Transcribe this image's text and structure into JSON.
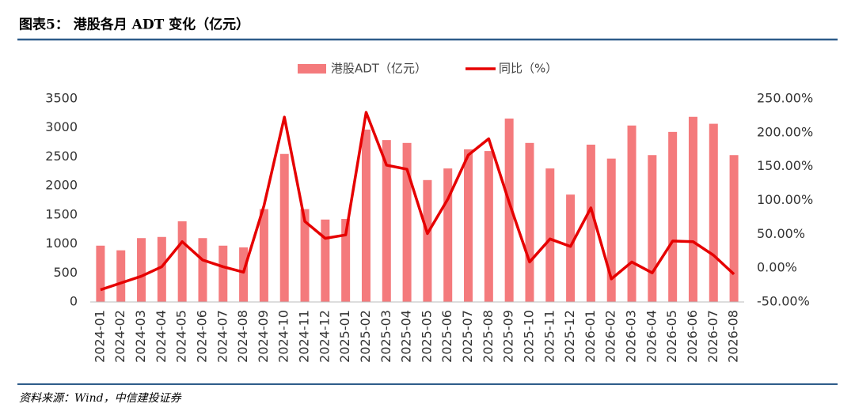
{
  "chart_data": {
    "type": "bar_line",
    "title": "图表5：  港股各月 ADT 变化（亿元）",
    "source": "资料来源：Wind，中信建投证券",
    "categories": [
      "2024-01",
      "2024-02",
      "2024-03",
      "2024-04",
      "2024-05",
      "2024-06",
      "2024-07",
      "2024-08",
      "2024-09",
      "2024-10",
      "2024-11",
      "2024-12",
      "2025-01",
      "2025-02",
      "2025-03",
      "2025-04",
      "2025-05",
      "2025-06",
      "2025-07",
      "2025-08",
      "2025-09",
      "2025-10",
      "2025-11",
      "2025-12",
      "2026-01",
      "2026-02",
      "2026-03",
      "2026-04",
      "2026-05",
      "2026-06",
      "2026-07",
      "2026-08"
    ],
    "series": [
      {
        "name": "港股ADT（亿元）",
        "type": "bar",
        "color": "#f47a7c",
        "values": [
          970,
          890,
          1100,
          1120,
          1390,
          1100,
          970,
          940,
          1600,
          2550,
          1600,
          1420,
          1430,
          2970,
          2790,
          2740,
          2100,
          2300,
          2630,
          2600,
          3160,
          2740,
          2300,
          1850,
          2710,
          2470,
          3040,
          2530,
          2930,
          3190,
          3070,
          2530
        ]
      },
      {
        "name": "同比（%）",
        "type": "line",
        "axis": "y2",
        "color": "#e60000",
        "values": [
          -32,
          -22,
          -12,
          2,
          39,
          12,
          2,
          -6,
          92,
          223,
          69,
          44,
          49,
          230,
          152,
          146,
          51,
          102,
          167,
          191,
          97,
          9,
          43,
          32,
          89,
          -16,
          9,
          -7,
          40,
          39,
          19,
          -9
        ]
      }
    ],
    "ylim": [
      0,
      3500
    ],
    "yticks": [
      0,
      500,
      1000,
      1500,
      2000,
      2500,
      3000,
      3500
    ],
    "y2lim": [
      -50,
      250
    ],
    "y2ticks": [
      {
        "value": -50,
        "label": "-50.00%"
      },
      {
        "value": 0,
        "label": "0.00%"
      },
      {
        "value": 50,
        "label": "50.00%"
      },
      {
        "value": 100,
        "label": "100.00%"
      },
      {
        "value": 150,
        "label": "150.00%"
      },
      {
        "value": 200,
        "label": "200.00%"
      },
      {
        "value": 250,
        "label": "250.00%"
      }
    ],
    "grid": false,
    "legend": "top"
  }
}
